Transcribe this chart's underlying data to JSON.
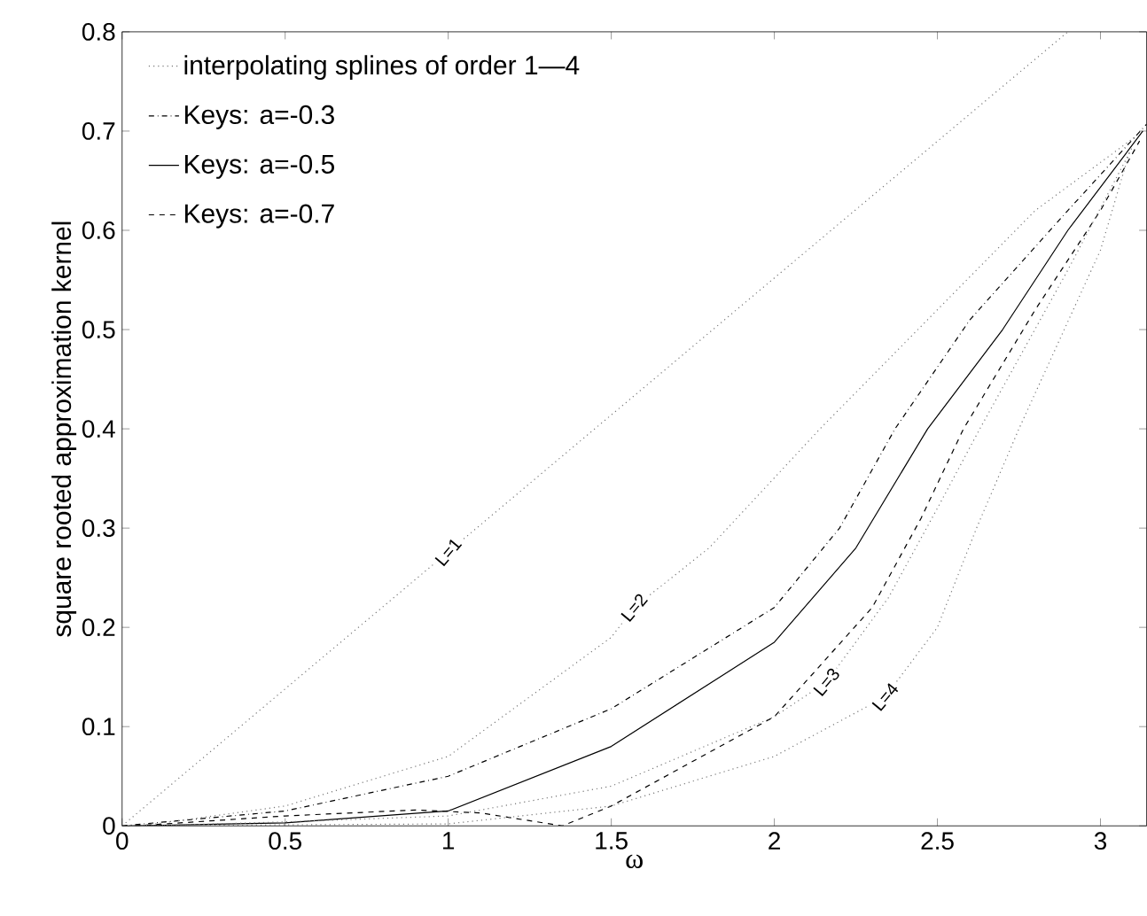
{
  "chart_data": {
    "type": "line",
    "xlabel": "ω",
    "ylabel": "square rooted approximation kernel",
    "xlim": [
      0,
      3.1416
    ],
    "ylim": [
      0,
      0.8
    ],
    "xticks": [
      0,
      0.5,
      1,
      1.5,
      2,
      2.5,
      3
    ],
    "yticks": [
      0,
      0.1,
      0.2,
      0.3,
      0.4,
      0.5,
      0.6,
      0.7,
      0.8
    ],
    "grid": false,
    "legend": "top left",
    "series": [
      {
        "name": "interpolating splines of order 1—4",
        "color": "#777777",
        "line_style": "dotted",
        "x": [
          0,
          1,
          2,
          2.9
        ],
        "values": [
          0,
          0.276,
          0.552,
          0.8
        ]
      },
      {
        "name": "Keys: a=-0.3",
        "color": "#000000",
        "line_style": "dashdot",
        "x": [
          0,
          0.5,
          1,
          1.5,
          2,
          2.2,
          2.37,
          2.6,
          2.9,
          3.1416
        ],
        "values": [
          0,
          0.015,
          0.05,
          0.118,
          0.22,
          0.3,
          0.4,
          0.51,
          0.62,
          0.707
        ]
      },
      {
        "name": "Keys: a=-0.5",
        "color": "#000000",
        "line_style": "solid",
        "x": [
          0.02,
          0.5,
          1,
          1.5,
          2,
          2.25,
          2.47,
          2.7,
          2.9,
          3.13
        ],
        "values": [
          0,
          0.003,
          0.015,
          0.08,
          0.185,
          0.28,
          0.4,
          0.5,
          0.6,
          0.7
        ]
      },
      {
        "name": "Keys: a=-0.7",
        "color": "#000000",
        "line_style": "dashed",
        "x": [
          0.04,
          0.5,
          0.9,
          1.1,
          1.35,
          1.5,
          2,
          2.3,
          2.45,
          2.58,
          2.8,
          3.0,
          3.12
        ],
        "values": [
          0,
          0.01,
          0.016,
          0.013,
          0,
          0.02,
          0.11,
          0.22,
          0.31,
          0.4,
          0.52,
          0.62,
          0.69
        ]
      },
      {
        "color": "#777777",
        "line_style": "dotted",
        "x": [
          0.06,
          0.5,
          1,
          1.5,
          1.57,
          1.8,
          2.14,
          2.5,
          2.8,
          3.11
        ],
        "values": [
          0,
          0.02,
          0.07,
          0.19,
          0.22,
          0.28,
          0.4,
          0.52,
          0.62,
          0.695
        ]
      },
      {
        "color": "#777777",
        "line_style": "dotted",
        "x": [
          0.08,
          0.5,
          1,
          1.5,
          2,
          2.16,
          2.35,
          2.5,
          2.63,
          2.9,
          3.1
        ],
        "values": [
          0,
          0.004,
          0.01,
          0.04,
          0.11,
          0.145,
          0.23,
          0.32,
          0.4,
          0.56,
          0.685
        ]
      },
      {
        "color": "#777777",
        "line_style": "dotted",
        "x": [
          0.1,
          0.5,
          1,
          1.5,
          2,
          2.34,
          2.5,
          2.62,
          2.75,
          3.0,
          3.09
        ],
        "values": [
          0,
          0.001,
          0.002,
          0.02,
          0.07,
          0.13,
          0.2,
          0.3,
          0.4,
          0.58,
          0.68
        ]
      }
    ],
    "annotations": [
      {
        "text": "L=1",
        "x": 1,
        "y": 0.276
      },
      {
        "text": "L=2",
        "x": 1.57,
        "y": 0.22
      },
      {
        "text": "L=3",
        "x": 2.16,
        "y": 0.145
      },
      {
        "text": "L=4",
        "x": 2.34,
        "y": 0.13
      }
    ]
  }
}
